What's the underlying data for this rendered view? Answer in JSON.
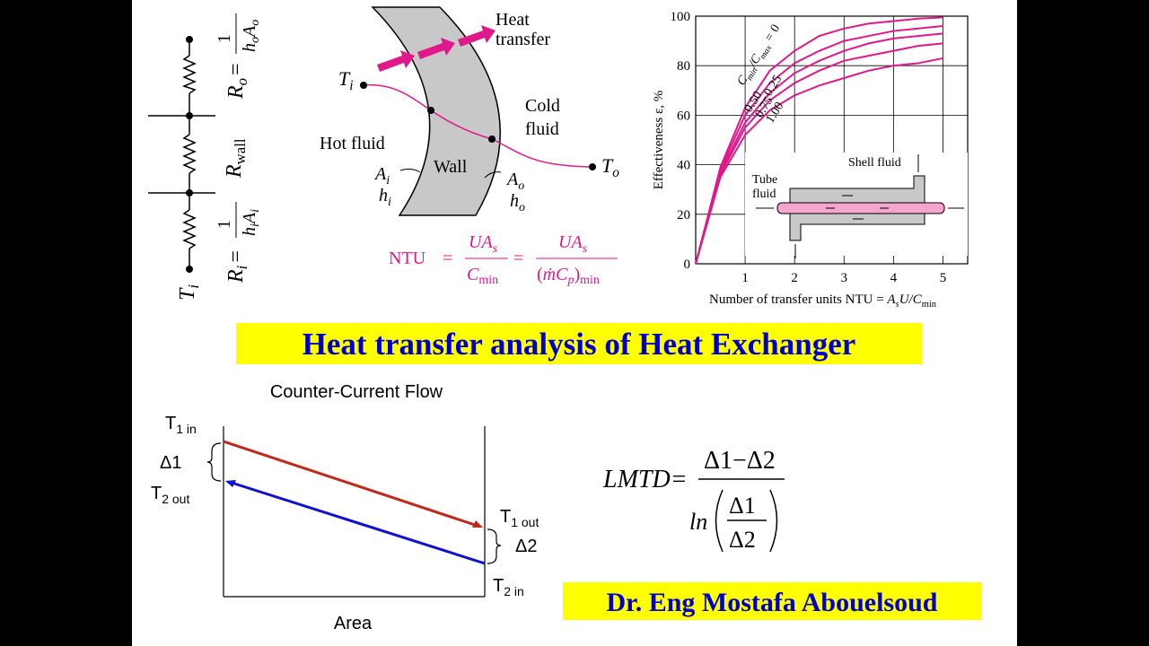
{
  "resistance_network": {
    "t_i": [
      "T",
      "i"
    ],
    "r_o": [
      "R",
      "o",
      "=",
      "1",
      "h",
      "o",
      "A",
      "o"
    ],
    "r_wall": [
      "R",
      "wall"
    ],
    "r_i": [
      "R",
      "i",
      "=",
      "1",
      "h",
      "i",
      "A",
      "i"
    ]
  },
  "wall_diagram": {
    "heat_transfer": [
      "Heat",
      "transfer"
    ],
    "t_i": [
      "T",
      "i"
    ],
    "cold_fluid": [
      "Cold",
      "fluid"
    ],
    "hot_fluid": "Hot fluid",
    "wall": "Wall",
    "a_i": [
      "A",
      "i"
    ],
    "h_i": [
      "h",
      "i"
    ],
    "a_o": [
      "A",
      "o"
    ],
    "h_o": [
      "h",
      "o"
    ],
    "t_o": [
      "T",
      "o"
    ]
  },
  "ntu_formula": [
    "NTU",
    "=",
    "UA",
    "s",
    "C",
    "min",
    "=",
    "UA",
    "s",
    "(",
    "ṁC",
    "p",
    ")",
    "min"
  ],
  "chart_data": {
    "type": "line",
    "ylabel": "Effectiveness ε, %",
    "xlabel": [
      "Number of transfer units NTU = ",
      "A",
      "s",
      "U/C",
      "min"
    ],
    "label_prefix": [
      "C",
      "min",
      "/C",
      "max",
      " = "
    ],
    "x": [
      0,
      0.5,
      1,
      1.5,
      2,
      2.5,
      3,
      3.5,
      4,
      4.5,
      5
    ],
    "series": [
      {
        "name": "0",
        "color": "#e0198a",
        "values": [
          0,
          39,
          63,
          78,
          86,
          92,
          95,
          97,
          98,
          99,
          99.5
        ]
      },
      {
        "name": "0.25",
        "color": "#e0198a",
        "values": [
          0,
          38,
          60,
          73,
          81,
          86,
          90,
          92,
          94,
          95,
          96
        ]
      },
      {
        "name": "0.50",
        "color": "#e0198a",
        "values": [
          0,
          37,
          57,
          69,
          77,
          82,
          86,
          89,
          91,
          92,
          93
        ]
      },
      {
        "name": "0.75",
        "color": "#e0198a",
        "values": [
          0,
          36,
          55,
          66,
          73,
          78,
          82,
          84,
          86,
          88,
          89
        ]
      },
      {
        "name": "1.00",
        "color": "#e0198a",
        "values": [
          0,
          35,
          52,
          62,
          68,
          72,
          75,
          78,
          80,
          81,
          83
        ]
      }
    ],
    "xlim": [
      0,
      5.5
    ],
    "ylim": [
      0,
      100
    ],
    "xticks": [
      1,
      2,
      3,
      4,
      5
    ],
    "yticks": [
      0,
      20,
      40,
      60,
      80,
      100
    ],
    "grid": true,
    "inset": {
      "shell_fluid": "Shell fluid",
      "tube_fluid": [
        "Tube",
        "fluid"
      ]
    }
  },
  "title": "Heat transfer analysis of Heat Exchanger",
  "counter_current": {
    "title": "Counter-Current Flow",
    "t1_in": [
      "T",
      "1 in"
    ],
    "delta1": "Δ1",
    "t2_out": [
      "T",
      "2 out"
    ],
    "t1_out": [
      "T",
      "1 out"
    ],
    "delta2": "Δ2",
    "t2_in": [
      "T",
      "2 in"
    ],
    "xlabel": "Area"
  },
  "lmtd": {
    "lhs": "LMTD=",
    "numerator": "Δ1−Δ2",
    "ln": "ln",
    "inner_num": "Δ1",
    "inner_den": "Δ2"
  },
  "author": "Dr. Eng Mostafa Abouelsoud"
}
